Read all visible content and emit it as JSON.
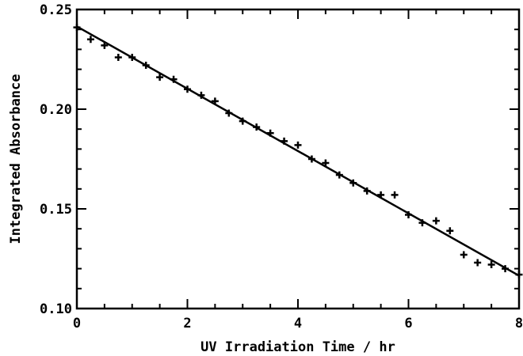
{
  "chart_data": {
    "type": "scatter",
    "title": "",
    "xlabel": "UV Irradiation Time / hr",
    "ylabel": "Integrated Absorbance",
    "xlim": [
      0,
      8
    ],
    "ylim": [
      0.1,
      0.25
    ],
    "x_ticks": [
      "0",
      "2",
      "4",
      "6",
      "8"
    ],
    "y_ticks": [
      "0.10",
      "0.15",
      "0.20",
      "0.25"
    ],
    "grid": false,
    "legend": "none",
    "series": [
      {
        "marker": "plus",
        "color": "#000000",
        "x": [
          0,
          0.25,
          0.5,
          0.75,
          1.0,
          1.25,
          1.5,
          1.75,
          2.0,
          2.25,
          2.5,
          2.75,
          3.0,
          3.25,
          3.5,
          3.75,
          4.0,
          4.25,
          4.5,
          4.75,
          5.0,
          5.25,
          5.5,
          5.75,
          6.0,
          6.25,
          6.5,
          6.75,
          7.0,
          7.25,
          7.5,
          7.75,
          8.0
        ],
        "y": [
          0.241,
          0.235,
          0.232,
          0.226,
          0.226,
          0.222,
          0.216,
          0.215,
          0.21,
          0.207,
          0.204,
          0.198,
          0.194,
          0.191,
          0.188,
          0.184,
          0.182,
          0.175,
          0.173,
          0.167,
          0.163,
          0.159,
          0.157,
          0.157,
          0.147,
          0.143,
          0.144,
          0.139,
          0.127,
          0.123,
          0.122,
          0.12,
          0.117
        ]
      },
      {
        "type": "line",
        "color": "#000000",
        "x": [
          0,
          8
        ],
        "y": [
          0.2415,
          0.1165
        ]
      }
    ]
  }
}
